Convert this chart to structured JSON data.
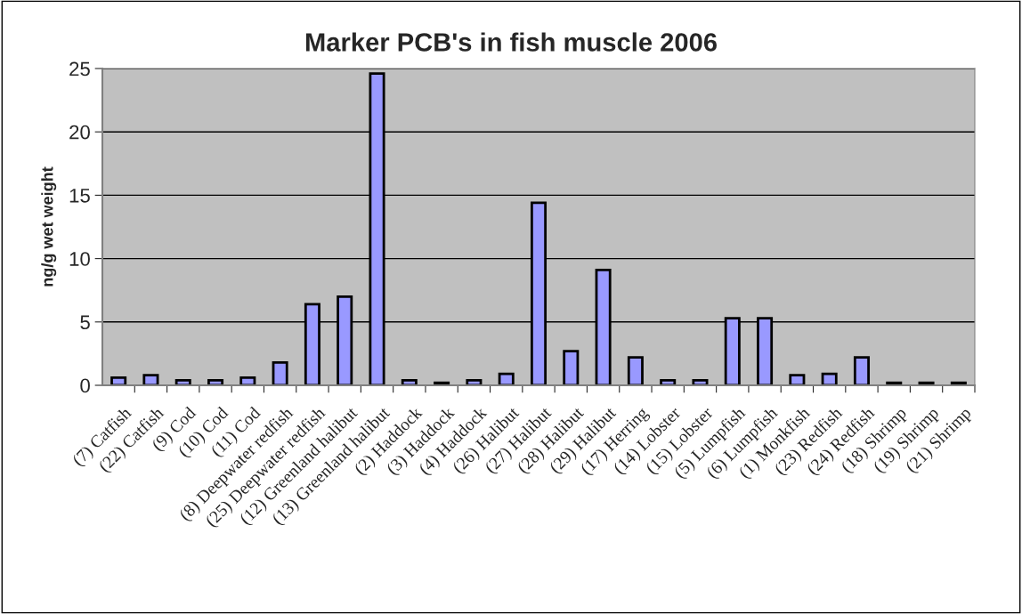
{
  "chart_data": {
    "type": "bar",
    "title": "Marker PCB's in fish muscle 2006",
    "ylabel": "ng/g wet weight",
    "categories": [
      "(7) Catfish",
      "(22) Catfish",
      "(9) Cod",
      "(10) Cod",
      "(11) Cod",
      "(8) Deepwater redfish",
      "(25) Deepwater redfish",
      "(12) Greenland halibut",
      "(13) Greenland halibut",
      "(2) Haddock",
      "(3) Haddock",
      "(4) Haddock",
      "(26) Halibut",
      "(27) Halibut",
      "(28) Halibut",
      "(29) Halibut",
      "(17) Herring",
      "(14) Lobster",
      "(15) Lobster",
      "(5) Lumpfish",
      "(6) Lumpfish",
      "(1) Monkfish",
      "(23) Redfish",
      "(24) Redfish",
      "(18) Shrimp",
      "(19) Shrimp",
      "(21) Shrimp"
    ],
    "values": [
      0.6,
      0.8,
      0.4,
      0.4,
      0.6,
      1.8,
      6.4,
      7.0,
      24.6,
      0.4,
      0.2,
      0.4,
      0.9,
      14.4,
      2.7,
      9.1,
      2.2,
      0.4,
      0.4,
      5.3,
      5.3,
      0.8,
      0.9,
      2.2,
      0.2,
      0.2,
      0.2
    ],
    "color": "#9999ff",
    "ylim": [
      0,
      25
    ],
    "yticks": [
      0,
      5,
      10,
      15,
      20,
      25
    ],
    "grid": "y",
    "legend": false
  }
}
